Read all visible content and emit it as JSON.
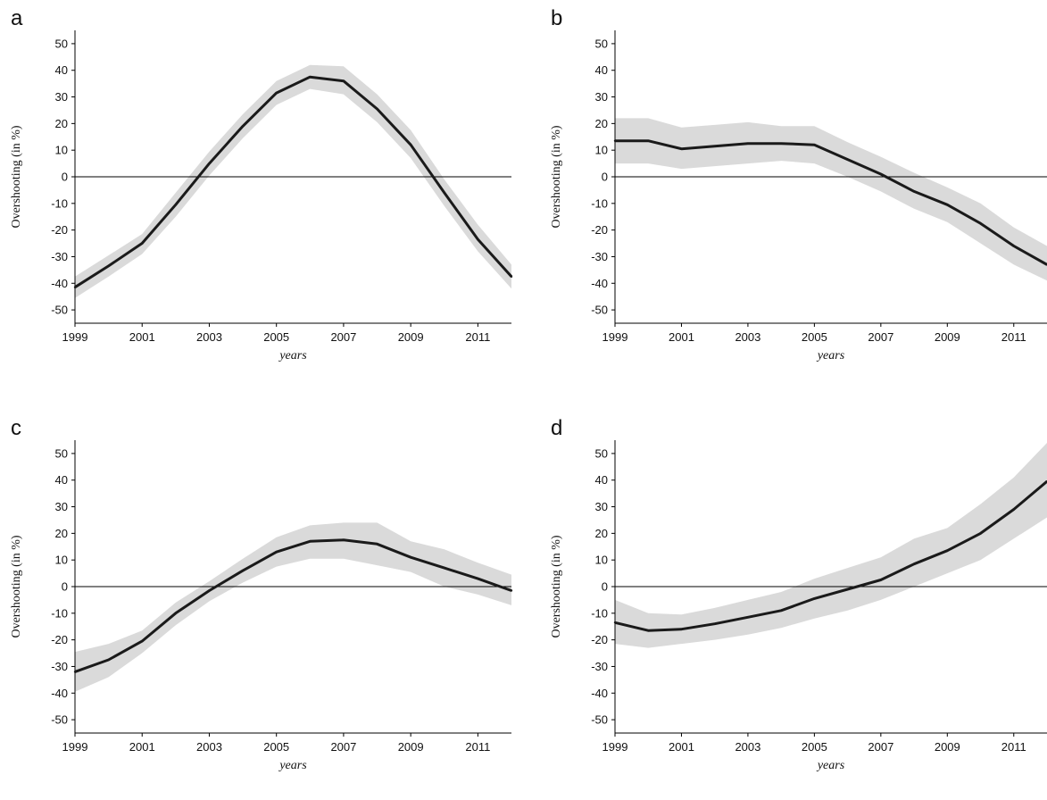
{
  "chart_data": [
    {
      "panel": "a",
      "type": "line",
      "xlabel": "years",
      "ylabel": "Overshooting (in %)",
      "xlim": [
        1999,
        2012
      ],
      "ylim": [
        -55,
        55
      ],
      "xticks": [
        "1999",
        "2001",
        "2003",
        "2005",
        "2007",
        "2009",
        "2011"
      ],
      "yticks": [
        "50",
        "40",
        "30",
        "20",
        "10",
        "0",
        "-10",
        "-20",
        "-30",
        "-40",
        "-50"
      ],
      "zero_line": true,
      "grid": false,
      "x": [
        1999,
        2000,
        2001,
        2002,
        2003,
        2004,
        2005,
        2006,
        2007,
        2008,
        2009,
        2010,
        2011,
        2012
      ],
      "y": [
        -41.5,
        -33.5,
        -25,
        -10.5,
        5,
        19,
        31.5,
        37.5,
        36,
        25.5,
        12,
        -6,
        -23.5,
        -37.5
      ],
      "band_lower": [
        -45.5,
        -37.5,
        -29,
        -15,
        0.5,
        14.5,
        27,
        33,
        31,
        20.5,
        7,
        -11,
        -28,
        -42
      ],
      "band_upper": [
        -37.5,
        -29.5,
        -21.5,
        -6,
        9.5,
        23.5,
        36,
        42,
        41.5,
        31,
        17.5,
        -1,
        -18,
        -33
      ],
      "colors": {
        "line": "#1a1a1a",
        "band": "#dadada",
        "zero": "#000000"
      }
    },
    {
      "panel": "b",
      "type": "line",
      "xlabel": "years",
      "ylabel": "Overshooting (in %)",
      "xlim": [
        1999,
        2012
      ],
      "ylim": [
        -55,
        55
      ],
      "xticks": [
        "1999",
        "2001",
        "2003",
        "2005",
        "2007",
        "2009",
        "2011"
      ],
      "yticks": [
        "50",
        "40",
        "30",
        "20",
        "10",
        "0",
        "-10",
        "-20",
        "-30",
        "-40",
        "-50"
      ],
      "zero_line": true,
      "grid": false,
      "x": [
        1999,
        2000,
        2001,
        2002,
        2003,
        2004,
        2005,
        2006,
        2007,
        2008,
        2009,
        2010,
        2011,
        2012
      ],
      "y": [
        13.5,
        13.5,
        10.5,
        11.5,
        12.5,
        12.5,
        12,
        6.5,
        1,
        -5.5,
        -10.5,
        -17.5,
        -26,
        -33
      ],
      "band_lower": [
        5,
        5,
        3,
        4,
        5,
        6,
        5,
        0,
        -5.5,
        -12,
        -17,
        -25,
        -33,
        -39
      ],
      "band_upper": [
        22,
        22,
        18.5,
        19.5,
        20.5,
        19,
        19,
        13,
        7.5,
        1.5,
        -4,
        -10,
        -19,
        -26
      ],
      "colors": {
        "line": "#1a1a1a",
        "band": "#dadada",
        "zero": "#000000"
      }
    },
    {
      "panel": "c",
      "type": "line",
      "xlabel": "years",
      "ylabel": "Overshooting (in %)",
      "xlim": [
        1999,
        2012
      ],
      "ylim": [
        -55,
        55
      ],
      "xticks": [
        "1999",
        "2001",
        "2003",
        "2005",
        "2007",
        "2009",
        "2011"
      ],
      "yticks": [
        "50",
        "40",
        "30",
        "20",
        "10",
        "0",
        "-10",
        "-20",
        "-30",
        "-40",
        "-50"
      ],
      "zero_line": true,
      "grid": false,
      "x": [
        1999,
        2000,
        2001,
        2002,
        2003,
        2004,
        2005,
        2006,
        2007,
        2008,
        2009,
        2010,
        2011,
        2012
      ],
      "y": [
        -32,
        -27.5,
        -20.5,
        -10,
        -1.5,
        6,
        13,
        17,
        17.5,
        16,
        11,
        7,
        3,
        -1.5
      ],
      "band_lower": [
        -39.5,
        -34,
        -25,
        -14.5,
        -5.5,
        1.5,
        7.5,
        10.5,
        10.5,
        8,
        5.5,
        0,
        -3,
        -7
      ],
      "band_upper": [
        -24.5,
        -21.5,
        -16.5,
        -6,
        2,
        10.5,
        18.5,
        23,
        24,
        24,
        17,
        14,
        9,
        4.5
      ],
      "colors": {
        "line": "#1a1a1a",
        "band": "#dadada",
        "zero": "#000000"
      }
    },
    {
      "panel": "d",
      "type": "line",
      "xlabel": "years",
      "ylabel": "Overshooting (in %)",
      "xlim": [
        1999,
        2012
      ],
      "ylim": [
        -55,
        55
      ],
      "xticks": [
        "1999",
        "2001",
        "2003",
        "2005",
        "2007",
        "2009",
        "2011"
      ],
      "yticks": [
        "50",
        "40",
        "30",
        "20",
        "10",
        "0",
        "-10",
        "-20",
        "-30",
        "-40",
        "-50"
      ],
      "zero_line": true,
      "grid": false,
      "x": [
        1999,
        2000,
        2001,
        2002,
        2003,
        2004,
        2005,
        2006,
        2007,
        2008,
        2009,
        2010,
        2011,
        2012
      ],
      "y": [
        -13.5,
        -16.5,
        -16,
        -14,
        -11.5,
        -9,
        -4.5,
        -1,
        2.5,
        8.5,
        13.5,
        20,
        29,
        39.5
      ],
      "band_lower": [
        -21.5,
        -23,
        -21.5,
        -20,
        -18,
        -15.5,
        -12,
        -9,
        -5,
        0,
        5,
        10,
        18,
        26
      ],
      "band_upper": [
        -5,
        -10,
        -10.5,
        -8,
        -5,
        -2,
        3,
        7,
        11,
        18,
        22,
        31,
        41,
        54
      ],
      "colors": {
        "line": "#1a1a1a",
        "band": "#dadada",
        "zero": "#000000"
      }
    }
  ]
}
